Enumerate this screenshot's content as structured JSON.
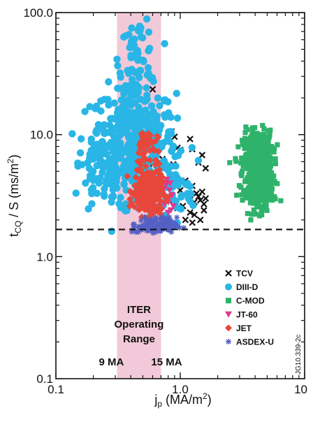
{
  "chart_data": {
    "type": "scatter",
    "xscale": "log",
    "yscale": "log",
    "xlim": [
      0.1,
      10
    ],
    "ylim": [
      0.1,
      100
    ],
    "x_ticks": [
      "0.1",
      "1.0",
      "10"
    ],
    "y_ticks": [
      "0.1",
      "1.0",
      "10.0",
      "100.0"
    ],
    "ylabel": {
      "main": "t",
      "sub": "CQ",
      "rest": " / S (ms/m",
      "sup": "2",
      "end": ")"
    },
    "xlabel": {
      "main": "j",
      "sub": "p",
      "rest": " (MA/m",
      "sup": "2",
      "end": ")"
    },
    "threshold_line": {
      "y": 1.67,
      "style": "dashed"
    },
    "band": {
      "x_range": [
        0.31,
        0.7
      ],
      "lines": [
        "ITER",
        "Operating",
        "Range"
      ],
      "color": "#f2c9d8",
      "left_label": "9 MA",
      "right_label": "15 MA"
    },
    "legend_position": "bottom-right",
    "series": [
      {
        "name": "TCV",
        "marker": "x",
        "color": "#111111",
        "points": [
          [
            0.35,
            10.8
          ],
          [
            0.6,
            23.5
          ],
          [
            0.56,
            5.8
          ],
          [
            0.72,
            6.3
          ],
          [
            0.8,
            9.2
          ],
          [
            0.82,
            10.3
          ],
          [
            0.85,
            10.6
          ],
          [
            0.88,
            5.7
          ],
          [
            0.9,
            9.6
          ],
          [
            0.95,
            7.8
          ],
          [
            1.0,
            7.5
          ],
          [
            1.2,
            9.2
          ],
          [
            1.25,
            7.6
          ],
          [
            1.4,
            5.9
          ],
          [
            1.5,
            6.8
          ],
          [
            1.6,
            5.3
          ],
          [
            0.88,
            2.9
          ],
          [
            0.95,
            2.5
          ],
          [
            1.05,
            2.6
          ],
          [
            1.1,
            4.2
          ],
          [
            1.2,
            3.2
          ],
          [
            1.25,
            3.8
          ],
          [
            1.3,
            2.8
          ],
          [
            1.35,
            3.3
          ],
          [
            1.4,
            3.1
          ],
          [
            1.45,
            2.9
          ],
          [
            1.5,
            3.4
          ],
          [
            1.55,
            2.7
          ],
          [
            1.6,
            3.0
          ],
          [
            1.2,
            2.3
          ],
          [
            1.3,
            2.2
          ],
          [
            1.45,
            2.0
          ],
          [
            1.55,
            2.4
          ],
          [
            1.1,
            2.0
          ],
          [
            1.25,
            1.9
          ],
          [
            1.0,
            3.5
          ]
        ]
      },
      {
        "name": "DIII-D",
        "marker": "circle",
        "color": "#29b6e6",
        "clouds": [
          {
            "cx": 0.42,
            "cy": 9.0,
            "sx": 0.17,
            "sy": 0.22,
            "n": 340,
            "xmin": 0.13,
            "xmax": 1.6,
            "ymin": 1.35,
            "ymax": 82
          },
          {
            "cx": 0.3,
            "cy": 5.0,
            "sx": 0.2,
            "sy": 0.18,
            "n": 120,
            "xmin": 0.12,
            "xmax": 1.0,
            "ymin": 1.3,
            "ymax": 30
          },
          {
            "cx": 0.45,
            "cy": 40.0,
            "sx": 0.07,
            "sy": 0.18,
            "n": 70,
            "xmin": 0.25,
            "xmax": 0.75,
            "ymin": 15,
            "ymax": 95
          },
          {
            "cx": 0.8,
            "cy": 3.5,
            "sx": 0.12,
            "sy": 0.12,
            "n": 50,
            "xmin": 0.45,
            "xmax": 1.4,
            "ymin": 1.5,
            "ymax": 12
          }
        ]
      },
      {
        "name": "C-MOD",
        "marker": "square",
        "color": "#2fb36b",
        "clouds": [
          {
            "cx": 4.2,
            "cy": 5.6,
            "sx": 0.06,
            "sy": 0.14,
            "n": 520,
            "xmin": 2.4,
            "xmax": 9.5,
            "ymin": 2.05,
            "ymax": 16
          },
          {
            "cx": 4.4,
            "cy": 3.0,
            "sx": 0.06,
            "sy": 0.06,
            "n": 60,
            "xmin": 2.6,
            "xmax": 7.5,
            "ymin": 2.0,
            "ymax": 4.5
          }
        ]
      },
      {
        "name": "JT-60",
        "marker": "triangle-down",
        "color": "#e0398f",
        "points": [
          [
            0.74,
            3.6
          ],
          [
            0.76,
            3.1
          ],
          [
            0.78,
            4.3
          ],
          [
            0.8,
            2.8
          ],
          [
            0.82,
            3.5
          ],
          [
            0.84,
            2.4
          ],
          [
            0.86,
            3.2
          ],
          [
            0.8,
            2.3
          ],
          [
            0.75,
            2.7
          ],
          [
            0.88,
            2.6
          ],
          [
            0.77,
            3.9
          ],
          [
            0.83,
            4.0
          ]
        ]
      },
      {
        "name": "JET",
        "marker": "diamond",
        "color": "#e8473c",
        "clouds": [
          {
            "cx": 0.55,
            "cy": 3.4,
            "sx": 0.055,
            "sy": 0.1,
            "n": 280,
            "xmin": 0.36,
            "xmax": 0.82,
            "ymin": 1.95,
            "ymax": 6.5
          },
          {
            "cx": 0.52,
            "cy": 8.0,
            "sx": 0.05,
            "sy": 0.07,
            "n": 40,
            "xmin": 0.4,
            "xmax": 0.72,
            "ymin": 5.5,
            "ymax": 12
          }
        ]
      },
      {
        "name": "ASDEX-U",
        "marker": "asterisk",
        "color": "#5560c4",
        "clouds": [
          {
            "cx": 0.62,
            "cy": 1.78,
            "sx": 0.09,
            "sy": 0.035,
            "n": 130,
            "xmin": 0.38,
            "xmax": 1.1,
            "ymin": 1.55,
            "ymax": 2.2
          }
        ]
      }
    ],
    "reference_code": "JG10.339-2c"
  }
}
